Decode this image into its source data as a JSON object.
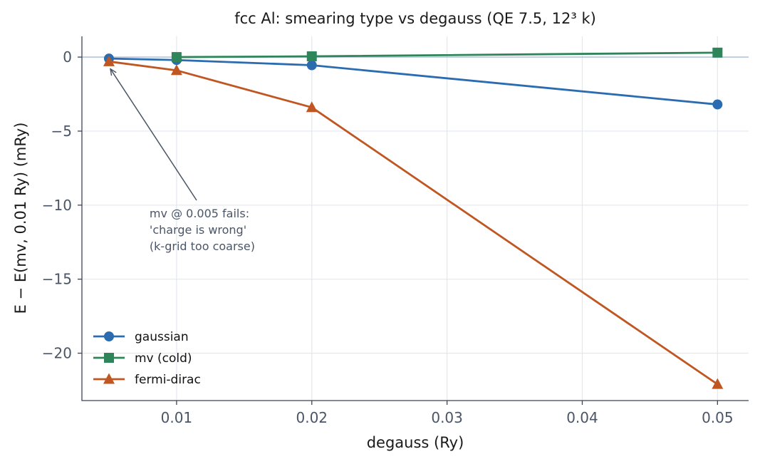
{
  "chart_data": {
    "type": "line",
    "title": "fcc Al: smearing type vs degauss  (QE 7.5, 12³ k)",
    "xlabel": "degauss  (Ry)",
    "ylabel": "E − E(mv, 0.01 Ry)  (mRy)",
    "xlim": [
      0.003,
      0.0523
    ],
    "ylim": [
      -23.2,
      1.4
    ],
    "xticks": [
      0.01,
      0.02,
      0.03,
      0.04,
      0.05
    ],
    "xtick_labels": [
      "0.01",
      "0.02",
      "0.03",
      "0.04",
      "0.05"
    ],
    "yticks": [
      0,
      -5,
      -10,
      -15,
      -20
    ],
    "ytick_labels": [
      "0",
      "−5",
      "−10",
      "−15",
      "−20"
    ],
    "grid": true,
    "reference_line_y": 0,
    "legend_position": "lower-left",
    "series": [
      {
        "name": "gaussian",
        "marker": "circle",
        "color": "#2b6cb0",
        "x": [
          0.005,
          0.01,
          0.02,
          0.05
        ],
        "y": [
          -0.1,
          -0.2,
          -0.55,
          -3.2
        ]
      },
      {
        "name": "mv (cold)",
        "marker": "square",
        "color": "#2f855a",
        "x": [
          0.01,
          0.02,
          0.05
        ],
        "y": [
          0.0,
          0.05,
          0.3
        ]
      },
      {
        "name": "fermi-dirac",
        "marker": "triangle",
        "color": "#c05621",
        "x": [
          0.005,
          0.01,
          0.02,
          0.05
        ],
        "y": [
          -0.3,
          -0.9,
          -3.4,
          -22.1
        ]
      }
    ],
    "annotation": {
      "lines": [
        "mv @ 0.005 fails:",
        "'charge is wrong'",
        "(k-grid too coarse)"
      ],
      "target": [
        0.005,
        -0.6
      ],
      "text_pos": [
        0.008,
        -10.4
      ]
    }
  }
}
